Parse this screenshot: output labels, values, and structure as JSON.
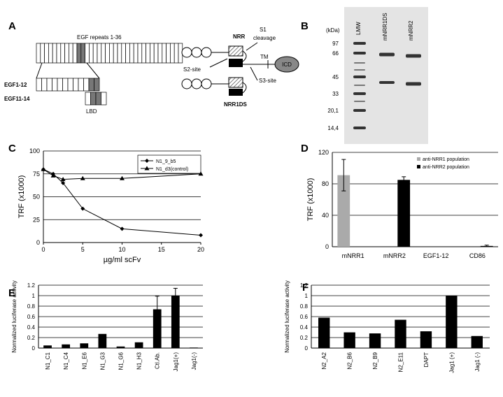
{
  "diagram": {
    "label": "A",
    "egf_label": "EGF repeats 1-36",
    "nrr": "NRR",
    "s1": "S1",
    "s1_cleavage": "cleavage",
    "tm": "TM",
    "icd": "ICD",
    "s2": "S2-site",
    "s3": "S3-site",
    "egf1_12": "EGF1-12",
    "egf11_14": "EGF11-14",
    "lbd": "LBD",
    "nrr1ds": "NRR1DS"
  },
  "gel": {
    "label": "B",
    "unit": "(kDa)",
    "lanes": [
      "LMW",
      "mNRR1DS",
      "mNRR2"
    ],
    "markers": [
      "97",
      "66",
      "45",
      "33",
      "20,1",
      "14,4"
    ]
  },
  "chart_data": [
    {
      "type": "line",
      "panel": "C",
      "y_label": "TRF (x1000)",
      "x_label": "µg/ml scFv",
      "x": [
        0,
        1.25,
        2.5,
        5,
        10,
        20
      ],
      "xlim": [
        0,
        20
      ],
      "xticks": [
        0,
        5,
        10,
        15,
        20
      ],
      "ylim": [
        0,
        100
      ],
      "yticks": [
        0,
        25,
        50,
        75,
        100
      ],
      "grid": true,
      "series": [
        {
          "name": "N1_9_b5",
          "color": "#000000",
          "marker": "diamond",
          "values": [
            80,
            75,
            65,
            37,
            15,
            8
          ]
        },
        {
          "name": "N1_d3(control)",
          "color": "#000000",
          "marker": "triangle",
          "values": [
            80,
            73,
            69,
            70,
            70,
            75
          ]
        }
      ]
    },
    {
      "type": "bar",
      "panel": "D",
      "y_label": "TRF (x1000)",
      "categories": [
        "mNRR1",
        "mNRR2",
        "EGF1-12",
        "CD86"
      ],
      "ylim": [
        0,
        120
      ],
      "yticks": [
        0,
        40,
        80,
        120
      ],
      "grid": true,
      "series": [
        {
          "name": "anti-NRR1 population",
          "color": "#aaaaaa",
          "values": [
            91,
            0,
            0,
            0
          ],
          "errors": [
            20,
            null,
            null,
            null
          ]
        },
        {
          "name": "anti-NRR2 population",
          "color": "#000000",
          "values": [
            0,
            85,
            0,
            1
          ],
          "errors": [
            null,
            4,
            null,
            1
          ]
        }
      ]
    },
    {
      "type": "bar",
      "panel": "E",
      "y_label": "Normalized luciferase activity",
      "categories": [
        "N1_C1",
        "N1_C4",
        "N1_E6",
        "N1_G3",
        "N1_G6",
        "N1_H3",
        "Ctl.Ab.",
        "Jag1(+)",
        "Jag1(-)"
      ],
      "ylim": [
        0,
        1.2
      ],
      "yticks": [
        0,
        0.2,
        0.4,
        0.6,
        0.8,
        1,
        1.2
      ],
      "grid": true,
      "series": [
        {
          "color": "#000000",
          "values": [
            0.05,
            0.07,
            0.09,
            0.27,
            0.03,
            0.11,
            0.74,
            1,
            0.01
          ],
          "errors": [
            null,
            null,
            null,
            null,
            null,
            null,
            0.25,
            0.14,
            null
          ]
        }
      ]
    },
    {
      "type": "bar",
      "panel": "F",
      "y_label": "Normalized luciferase activity",
      "categories": [
        "N2_A2",
        "N2_B6",
        "N2_B9",
        "N2_E11",
        "DAPT",
        "Jag1 (+)",
        "Jag1 (-)"
      ],
      "ylim": [
        0,
        1.2
      ],
      "yticks": [
        0,
        0.2,
        0.4,
        0.6,
        0.8,
        1,
        1.2
      ],
      "grid": true,
      "series": [
        {
          "color": "#000000",
          "values": [
            0.58,
            0.3,
            0.28,
            0.54,
            0.32,
            1,
            0.23
          ]
        }
      ]
    }
  ]
}
